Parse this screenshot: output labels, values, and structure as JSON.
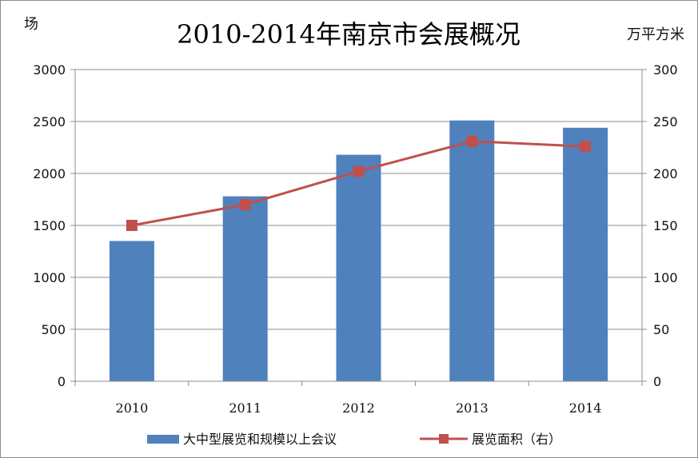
{
  "chart_data": {
    "type": "bar",
    "title": "2010-2014年南京市会展概况",
    "categories": [
      "2010",
      "2011",
      "2012",
      "2013",
      "2014"
    ],
    "left_axis": {
      "unit": "场",
      "ylim": [
        0,
        3000
      ],
      "ticks": [
        "0",
        "500",
        "1000",
        "1500",
        "2000",
        "2500",
        "3000"
      ]
    },
    "right_axis": {
      "unit": "万平方米",
      "ylim": [
        0,
        300
      ],
      "ticks": [
        "0",
        "50",
        "100",
        "150",
        "200",
        "250",
        "300"
      ]
    },
    "series": [
      {
        "name": "大中型展览和规模以上会议",
        "type": "bar",
        "axis": "left",
        "values": [
          1350,
          1780,
          2180,
          2510,
          2440
        ],
        "color": "#4f81bd"
      },
      {
        "name": "展览面积（右）",
        "type": "line",
        "axis": "right",
        "values": [
          150,
          170,
          202,
          231,
          226
        ],
        "color": "#c0504d"
      }
    ],
    "grid": true,
    "legend": "bottom"
  }
}
